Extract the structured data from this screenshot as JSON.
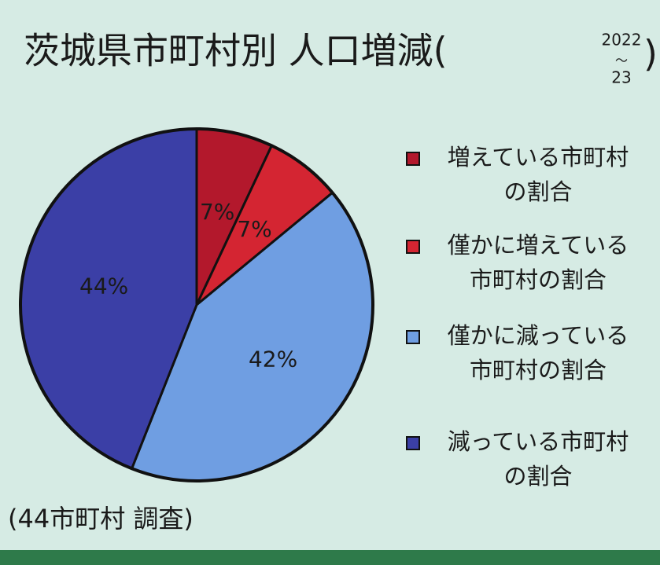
{
  "chart_data": {
    "type": "pie",
    "title": "茨城県市町村別 人口増減(",
    "period_from": "2022",
    "period_sep": "〜",
    "period_to": "23",
    "title_close": ")",
    "categories": [
      "増えている市町村\nの割合",
      "僅かに増えている\n市町村の割合",
      "僅かに減っている\n市町村の割合",
      "減っている市町村\nの割合"
    ],
    "values": [
      7,
      7,
      42,
      44
    ],
    "value_labels": [
      "7%",
      "7%",
      "42%",
      "44%"
    ],
    "colors": [
      "#b3182c",
      "#d42532",
      "#6f9ee2",
      "#3b3fa6"
    ],
    "note": "(44市町村 調査)"
  }
}
